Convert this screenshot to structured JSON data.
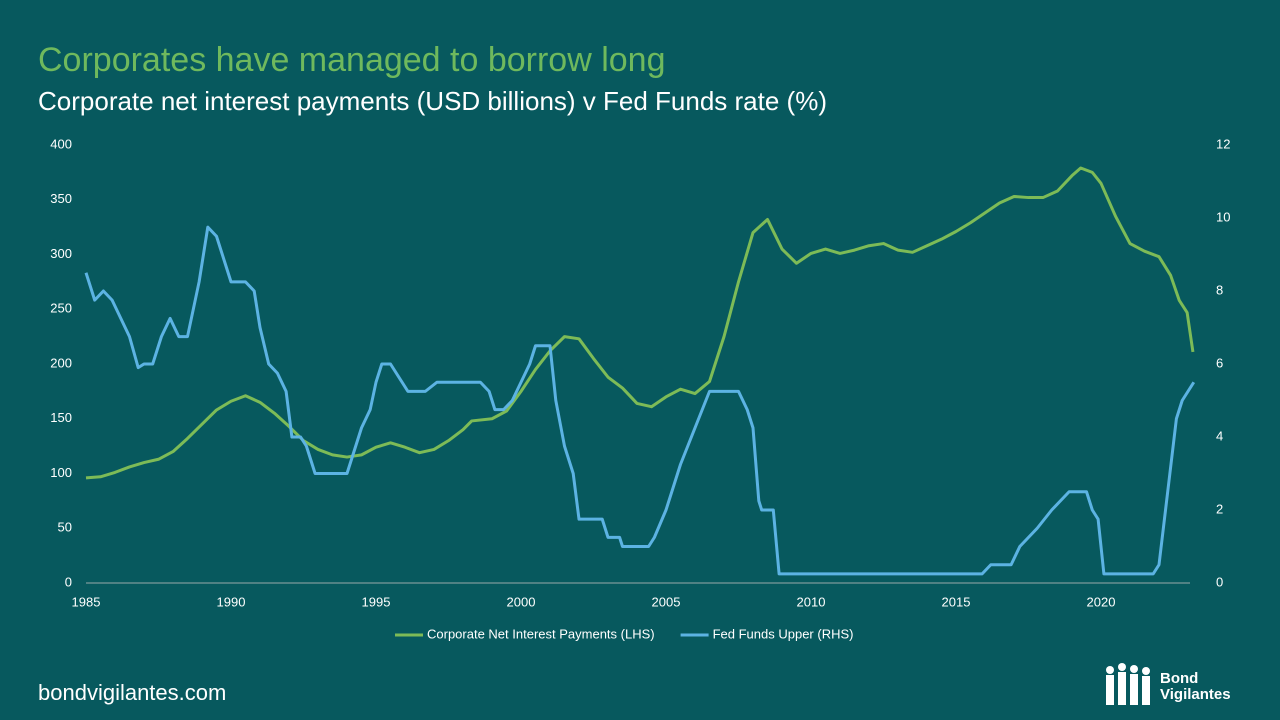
{
  "chart_data": {
    "type": "line",
    "title": "Corporates have managed to borrow long",
    "subtitle": "Corporate net interest payments (USD billions) v Fed Funds rate (%)",
    "xlim": [
      1985,
      2023.4
    ],
    "xticks": [
      1985,
      1990,
      1995,
      2000,
      2005,
      2010,
      2015,
      2020
    ],
    "ylim": [
      0,
      400
    ],
    "yticks": [
      0,
      50,
      100,
      150,
      200,
      250,
      300,
      350,
      400
    ],
    "y2lim": [
      0,
      12
    ],
    "y2ticks": [
      0,
      2,
      4,
      6,
      8,
      10,
      12
    ],
    "grid": false,
    "legend": "bottom",
    "series": [
      {
        "name": "Corporate Net Interest Payments (LHS)",
        "color": "#7dbb57",
        "x": [
          1985.0,
          1985.5,
          1986.0,
          1986.5,
          1987.0,
          1987.5,
          1988.0,
          1988.5,
          1989.0,
          1989.5,
          1990.0,
          1990.5,
          1991.0,
          1991.5,
          1992.0,
          1992.5,
          1993.0,
          1993.5,
          1994.0,
          1994.5,
          1995.0,
          1995.5,
          1996.0,
          1996.5,
          1997.0,
          1997.5,
          1998.0,
          1998.3,
          1999.0,
          1999.5,
          2000.0,
          2000.5,
          2001.0,
          2001.5,
          2002.0,
          2002.5,
          2003.0,
          2003.5,
          2004.0,
          2004.5,
          2005.0,
          2005.5,
          2006.0,
          2006.5,
          2007.0,
          2007.5,
          2008.0,
          2008.5,
          2009.0,
          2009.5,
          2010.0,
          2010.5,
          2011.0,
          2011.5,
          2012.0,
          2012.5,
          2013.0,
          2013.5,
          2014.0,
          2014.5,
          2015.0,
          2015.5,
          2016.0,
          2016.5,
          2017.0,
          2017.5,
          2018.0,
          2018.5,
          2019.0,
          2019.3,
          2019.7,
          2020.0,
          2020.5,
          2021.0,
          2021.5,
          2022.0,
          2022.4,
          2022.7,
          2022.97,
          2023.17
        ],
        "values": [
          96,
          97,
          101,
          106,
          110,
          113,
          120,
          132,
          145,
          158,
          166,
          171,
          165,
          155,
          143,
          130,
          122,
          117,
          115,
          117,
          124,
          128,
          124,
          119,
          122,
          130,
          140,
          148,
          150,
          157,
          175,
          195,
          212,
          225,
          223,
          205,
          188,
          178,
          164,
          161,
          170,
          177,
          173,
          184,
          225,
          275,
          320,
          332,
          305,
          292,
          301,
          305,
          301,
          304,
          308,
          310,
          304,
          302,
          308,
          314,
          321,
          329,
          338,
          347,
          353,
          352,
          352,
          358,
          372,
          379,
          375,
          365,
          335,
          310,
          303,
          298,
          281,
          258,
          247,
          211
        ]
      },
      {
        "name": "Fed Funds Upper (RHS)",
        "color": "#5cb3e3",
        "axis": "y2",
        "x": [
          1985.0,
          1985.3,
          1985.6,
          1985.9,
          1986.2,
          1986.5,
          1986.8,
          1987.0,
          1987.3,
          1987.6,
          1987.9,
          1988.2,
          1988.5,
          1988.9,
          1989.2,
          1989.5,
          1989.8,
          1990.0,
          1990.5,
          1990.8,
          1991.0,
          1991.3,
          1991.6,
          1991.9,
          1992.1,
          1992.4,
          1992.6,
          1992.9,
          1993.5,
          1994.0,
          1994.2,
          1994.5,
          1994.8,
          1995.0,
          1995.2,
          1995.5,
          1995.9,
          1996.1,
          1996.7,
          1997.1,
          1998.0,
          1998.6,
          1998.9,
          1999.1,
          1999.4,
          1999.7,
          2000.0,
          2000.3,
          2000.5,
          2001.0,
          2001.2,
          2001.5,
          2001.8,
          2002.0,
          2002.8,
          2003.0,
          2003.4,
          2003.5,
          2004.4,
          2004.6,
          2005.0,
          2005.5,
          2006.0,
          2006.5,
          2007.5,
          2007.8,
          2008.0,
          2008.2,
          2008.3,
          2008.7,
          2008.9,
          2015.9,
          2016.2,
          2016.9,
          2017.2,
          2017.5,
          2017.8,
          2018.3,
          2018.9,
          2019.5,
          2019.7,
          2019.9,
          2020.1,
          2021.8,
          2022.0,
          2022.3,
          2022.6,
          2022.8,
          2023.0,
          2023.2
        ],
        "values": [
          8.5,
          7.75,
          8.0,
          7.75,
          7.25,
          6.75,
          5.9,
          6.0,
          6.0,
          6.75,
          7.25,
          6.75,
          6.75,
          8.25,
          9.75,
          9.5,
          8.75,
          8.25,
          8.25,
          8.0,
          7.0,
          6.0,
          5.75,
          5.25,
          4.0,
          4.0,
          3.75,
          3.0,
          3.0,
          3.0,
          3.5,
          4.25,
          4.75,
          5.5,
          6.0,
          6.0,
          5.5,
          5.25,
          5.25,
          5.5,
          5.5,
          5.5,
          5.25,
          4.75,
          4.75,
          5.0,
          5.5,
          6.0,
          6.5,
          6.5,
          5.0,
          3.75,
          3.0,
          1.75,
          1.75,
          1.25,
          1.25,
          1.0,
          1.0,
          1.25,
          2.0,
          3.25,
          4.25,
          5.25,
          5.25,
          4.75,
          4.25,
          2.25,
          2.0,
          2.0,
          0.25,
          0.25,
          0.5,
          0.5,
          1.0,
          1.25,
          1.5,
          2.0,
          2.5,
          2.5,
          2.0,
          1.75,
          0.25,
          0.25,
          0.5,
          2.5,
          4.5,
          5.0,
          5.25,
          5.5
        ]
      }
    ]
  },
  "footer": "bondvigilantes.com",
  "logo": {
    "line1": "Bond",
    "line2": "Vigilantes"
  }
}
